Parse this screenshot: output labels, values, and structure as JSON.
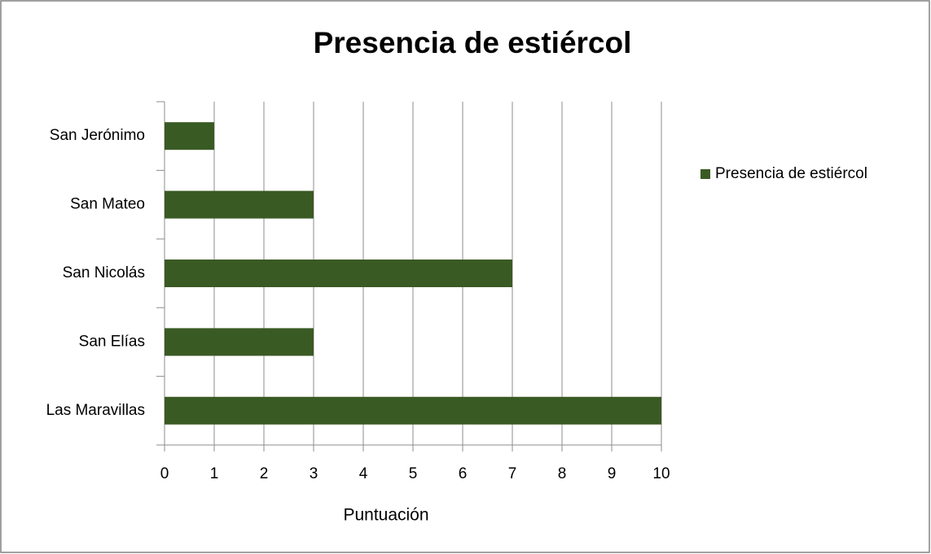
{
  "chart_data": {
    "type": "bar",
    "orientation": "horizontal",
    "title": "Presencia de estiércol",
    "categories": [
      "San Jerónimo",
      "San Mateo",
      "San Nicolás",
      "San Elías",
      "Las Maravillas"
    ],
    "series": [
      {
        "name": "Presencia de estiércol",
        "color": "#3a5a24",
        "values": [
          1,
          3,
          7,
          3,
          10
        ]
      }
    ],
    "xlabel": "Puntuación",
    "xlim": [
      0,
      10
    ],
    "xticks": [
      0,
      1,
      2,
      3,
      4,
      5,
      6,
      7,
      8,
      9,
      10
    ],
    "grid": true,
    "legend": "right"
  }
}
